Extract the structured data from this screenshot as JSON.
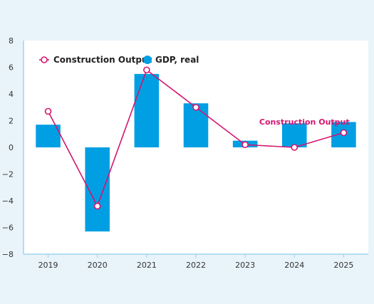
{
  "chart_data": {
    "type": "bar",
    "title": "",
    "xlabel": "",
    "ylabel": "",
    "categories": [
      "2019",
      "2020",
      "2021",
      "2022",
      "2023",
      "2024",
      "2025"
    ],
    "ylim": [
      -8,
      8
    ],
    "yticks": [
      -8,
      -6,
      -4,
      -2,
      0,
      2,
      4,
      6,
      8
    ],
    "yticklabels": [
      "−8",
      "−6",
      "−4",
      "−2",
      "0",
      "2",
      "4",
      "6",
      "8"
    ],
    "grid": false,
    "legend": "top-left",
    "series": [
      {
        "name": "GDP, real",
        "type": "bar",
        "color": "#009fe3",
        "values": [
          1.7,
          -6.3,
          5.5,
          3.3,
          0.5,
          1.8,
          1.9
        ]
      },
      {
        "name": "Construction Output",
        "type": "line",
        "color": "#d4156f",
        "values": [
          2.7,
          -4.4,
          5.8,
          3.0,
          0.2,
          0.0,
          1.1
        ]
      }
    ],
    "annotations": [
      {
        "text": "Construction Output",
        "category": "2024",
        "y": 1.7,
        "color": "#d4156f"
      }
    ]
  }
}
